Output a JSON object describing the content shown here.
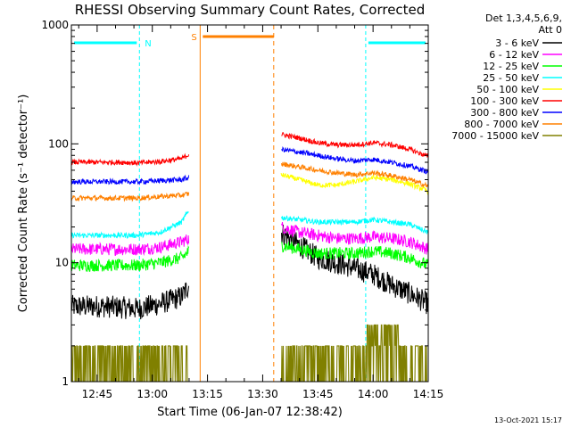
{
  "chart_data": {
    "type": "line",
    "title": "RHESSI Observing Summary Count Rates, Corrected",
    "xlabel": "Start Time (06-Jan-07 12:38:42)",
    "ylabel": "Corrected Count Rate (s⁻¹ detector⁻¹)",
    "y_scale": "log",
    "ylim": [
      1,
      1000
    ],
    "xlim_minutes_after_1238": [
      0,
      97
    ],
    "x_ticks": [
      "12:45",
      "13:00",
      "13:15",
      "13:30",
      "13:45",
      "14:00",
      "14:15"
    ],
    "x_tick_minutes_after_1238": [
      7,
      22,
      37,
      52,
      67,
      82,
      97
    ],
    "y_ticks": [
      "1",
      "10",
      "100",
      "1000"
    ],
    "legend": {
      "header1": "Det 1,3,4,5,6,9,",
      "header2": "Att 0",
      "placement": "right"
    },
    "flags": [
      {
        "label": "N",
        "color": "#00ffff",
        "from_min": 0,
        "to_min": 18.5
      },
      {
        "label": "S",
        "color": "#ff8000",
        "from_min": 35,
        "to_min": 55
      },
      {
        "label": "",
        "color": "#00ffff",
        "from_min": 80,
        "to_min": 97
      }
    ],
    "day_night_boundaries_min": [
      18.5,
      80,
      97
    ],
    "saa_boundaries_min": [
      35,
      55
    ],
    "data_gaps_min": [
      [
        33,
        57
      ]
    ],
    "series": [
      {
        "name": "3 - 6 keV",
        "color": "#000000",
        "x": [
          0,
          8,
          14,
          18,
          24,
          30,
          32,
          57,
          62,
          67,
          72,
          77,
          82,
          87,
          92,
          97
        ],
        "y": [
          4.3,
          4.3,
          4.2,
          4.1,
          4.5,
          5.2,
          6.5,
          18,
          14,
          11,
          10,
          9,
          8,
          6.5,
          5.5,
          4.5
        ]
      },
      {
        "name": "6 - 12 keV",
        "color": "#ff00ff",
        "x": [
          0,
          8,
          14,
          18,
          24,
          30,
          32,
          57,
          62,
          67,
          72,
          77,
          82,
          87,
          92,
          97
        ],
        "y": [
          13,
          13,
          13,
          13,
          13.5,
          15,
          16,
          20,
          18,
          17,
          16,
          16,
          16.5,
          16,
          15,
          13
        ]
      },
      {
        "name": "12 - 25 keV",
        "color": "#00ff00",
        "x": [
          0,
          8,
          14,
          18,
          24,
          30,
          32,
          57,
          62,
          67,
          72,
          77,
          82,
          87,
          92,
          97
        ],
        "y": [
          9.5,
          9.5,
          9.5,
          9.5,
          10,
          11,
          12.5,
          14,
          13,
          12,
          12,
          12,
          12.5,
          12,
          11,
          9.5
        ]
      },
      {
        "name": "25 - 50 keV",
        "color": "#00ffff",
        "x": [
          0,
          8,
          14,
          18,
          24,
          30,
          32,
          57,
          62,
          67,
          72,
          77,
          82,
          87,
          92,
          97
        ],
        "y": [
          17,
          17,
          17,
          17,
          18,
          22,
          28,
          24,
          23,
          22,
          22,
          22,
          23,
          22,
          21,
          18
        ]
      },
      {
        "name": "50 - 100 keV",
        "color": "#ffff00",
        "x": [
          57,
          62,
          67,
          72,
          77,
          82,
          87,
          92,
          97
        ],
        "y": [
          55,
          50,
          45,
          45,
          48,
          52,
          50,
          46,
          40
        ]
      },
      {
        "name": "100 - 300 keV",
        "color": "#ff0000",
        "x": [
          0,
          8,
          14,
          18,
          24,
          30,
          32,
          57,
          62,
          67,
          72,
          77,
          82,
          87,
          92,
          97
        ],
        "y": [
          70,
          70,
          70,
          69,
          71,
          75,
          82,
          120,
          112,
          102,
          98,
          98,
          102,
          98,
          90,
          78
        ]
      },
      {
        "name": "300 - 800 keV",
        "color": "#0000ff",
        "x": [
          0,
          8,
          14,
          18,
          24,
          30,
          32,
          57,
          62,
          67,
          72,
          77,
          82,
          87,
          92,
          97
        ],
        "y": [
          48,
          48,
          48,
          48,
          49,
          50,
          52,
          90,
          85,
          80,
          75,
          72,
          74,
          70,
          65,
          58
        ]
      },
      {
        "name": "800 - 7000 keV",
        "color": "#ff8000",
        "x": [
          0,
          8,
          14,
          18,
          24,
          30,
          32,
          57,
          62,
          67,
          72,
          77,
          82,
          87,
          92,
          97
        ],
        "y": [
          35,
          35,
          35,
          35,
          36,
          37,
          38,
          68,
          64,
          60,
          57,
          55,
          57,
          54,
          50,
          44
        ]
      },
      {
        "name": "7000 - 15000 keV",
        "color": "#808000",
        "x": [
          0,
          8,
          14,
          18,
          24,
          30,
          32,
          57,
          62,
          67,
          72,
          77,
          82,
          87,
          92,
          97
        ],
        "y": [
          1.5,
          1.5,
          1.5,
          1.5,
          1.5,
          1.6,
          1.8,
          1.5,
          1.5,
          1.5,
          1.5,
          1.5,
          2.4,
          2.4,
          1.6,
          1.5
        ]
      }
    ],
    "footer_date": "13-Oct-2021 15:17"
  }
}
